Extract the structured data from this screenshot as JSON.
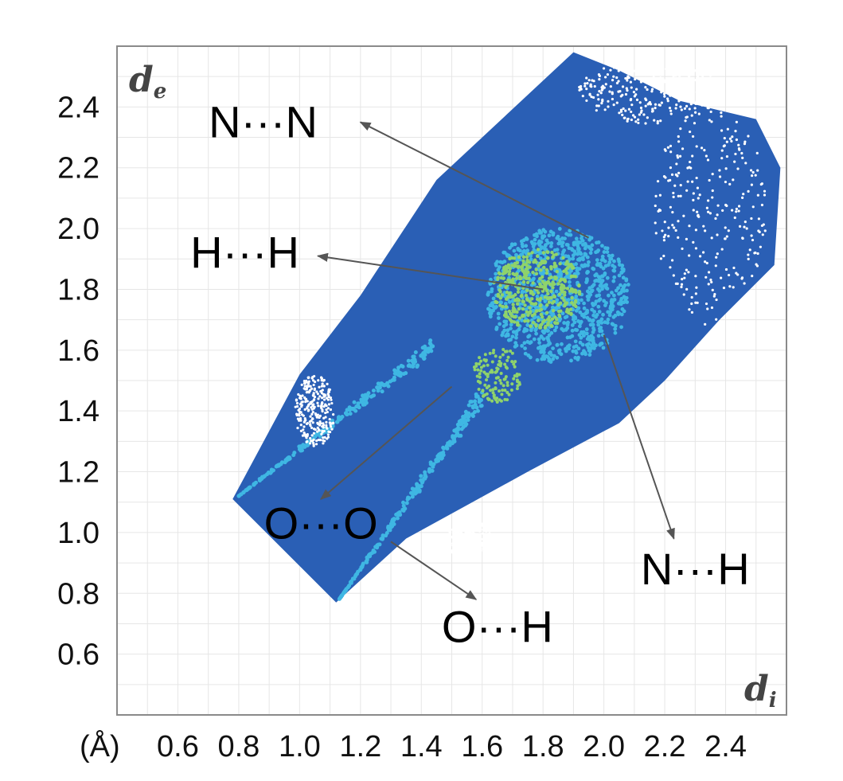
{
  "chart_data": {
    "type": "heatmap",
    "unit_label": "(Å)",
    "xlabel": {
      "main": "d",
      "sub": "i"
    },
    "ylabel": {
      "main": "d",
      "sub": "e"
    },
    "xlim": [
      0.4,
      2.6
    ],
    "ylim": [
      0.4,
      2.6
    ],
    "x_ticks": [
      "0.6",
      "0.8",
      "1.0",
      "1.2",
      "1.4",
      "1.6",
      "1.8",
      "2.0",
      "2.2",
      "2.4"
    ],
    "y_ticks": [
      "0.6",
      "0.8",
      "1.0",
      "1.2",
      "1.4",
      "1.6",
      "1.8",
      "2.0",
      "2.2",
      "2.4"
    ],
    "grid": true,
    "colors": {
      "sparse": "#2a5fb5",
      "medium": "#3fb7e3",
      "dense": "#8fd36b",
      "grid": "#e6e6e6",
      "frame": "#8a8a8a"
    },
    "region_outline": [
      [
        0.78,
        1.11
      ],
      [
        1.12,
        0.77
      ],
      [
        1.35,
        0.98
      ],
      [
        1.75,
        1.2
      ],
      [
        2.05,
        1.36
      ],
      [
        2.2,
        1.5
      ],
      [
        2.38,
        1.7
      ],
      [
        2.56,
        1.88
      ],
      [
        2.58,
        2.2
      ],
      [
        2.5,
        2.36
      ],
      [
        2.25,
        2.42
      ],
      [
        2.05,
        2.52
      ],
      [
        1.9,
        2.58
      ],
      [
        1.45,
        2.16
      ],
      [
        1.2,
        1.78
      ],
      [
        1.0,
        1.52
      ]
    ],
    "annotations": [
      {
        "text": "N···N",
        "text_at": [
          0.88,
          2.3
        ],
        "arrow_to": [
          1.2,
          2.35
        ],
        "arrow_from": [
          1.95,
          1.97
        ]
      },
      {
        "text": "H···H",
        "text_at": [
          0.82,
          1.87
        ],
        "arrow_to": [
          1.06,
          1.91
        ],
        "arrow_from": [
          1.8,
          1.8
        ]
      },
      {
        "text": "O···O",
        "text_at": [
          1.07,
          0.98
        ],
        "arrow_to": [
          1.07,
          1.11
        ],
        "arrow_from": [
          1.5,
          1.48
        ]
      },
      {
        "text": "O···H",
        "text_at": [
          1.65,
          0.64
        ],
        "arrow_to": [
          1.58,
          0.78
        ],
        "arrow_from": [
          1.3,
          0.97
        ]
      },
      {
        "text": "N···H",
        "text_at": [
          2.3,
          0.83
        ],
        "arrow_to": [
          2.23,
          0.98
        ],
        "arrow_from": [
          2.0,
          1.65
        ]
      }
    ]
  }
}
